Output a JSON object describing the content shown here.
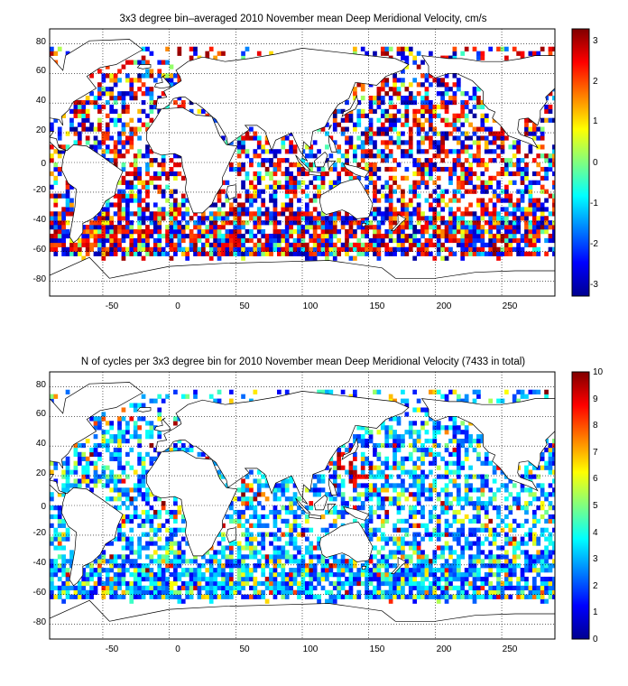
{
  "figure": {
    "panels": [
      {
        "title": "3x3 degree bin–averaged 2010 November mean Deep Meridional Velocity, cm/s",
        "x_ticks": [
          "-50",
          "0",
          "50",
          "100",
          "150",
          "200",
          "250"
        ],
        "y_ticks": [
          "80",
          "60",
          "40",
          "20",
          "0",
          "-20",
          "-40",
          "-60",
          "-80"
        ],
        "colorbar_ticks": [
          "3",
          "2",
          "1",
          "0",
          "-1",
          "-2",
          "-3"
        ]
      },
      {
        "title": "N of cycles per 3x3 degree bin for 2010 November mean Deep Meridional Velocity (7433 in total)",
        "x_ticks": [
          "-50",
          "0",
          "50",
          "100",
          "150",
          "200",
          "250"
        ],
        "y_ticks": [
          "80",
          "60",
          "40",
          "20",
          "0",
          "-20",
          "-40",
          "-60",
          "-80"
        ],
        "colorbar_ticks": [
          "10",
          "9",
          "8",
          "7",
          "6",
          "5",
          "4",
          "3",
          "2",
          "1",
          "0"
        ]
      }
    ]
  },
  "chart_data": [
    {
      "type": "heatmap",
      "title": "3x3 degree bin–averaged 2010 November mean Deep Meridional Velocity, cm/s",
      "xlim": [
        -90,
        290
      ],
      "ylim": [
        -90,
        90
      ],
      "x_ticks": [
        -50,
        0,
        50,
        100,
        150,
        200,
        250
      ],
      "y_ticks": [
        80,
        60,
        40,
        20,
        0,
        -20,
        -40,
        -60,
        -80
      ],
      "bin_size_deg": 3,
      "grid": "dotted",
      "colormap": "jet",
      "clim": [
        -3.3,
        3.3
      ],
      "colorbar_ticks": [
        3,
        2,
        1,
        0,
        -1,
        -2,
        -3
      ],
      "colors": {
        "ocean_bg": "#ffffff",
        "coast": "#000000"
      }
    },
    {
      "type": "heatmap",
      "title": "N of cycles per 3x3 degree bin for 2010 November mean Deep Meridional Velocity (7433 in total)",
      "total_cycles": 7433,
      "xlim": [
        -90,
        290
      ],
      "ylim": [
        -90,
        90
      ],
      "x_ticks": [
        -50,
        0,
        50,
        100,
        150,
        200,
        250
      ],
      "y_ticks": [
        80,
        60,
        40,
        20,
        0,
        -20,
        -40,
        -60,
        -80
      ],
      "bin_size_deg": 3,
      "grid": "dotted",
      "colormap": "jet",
      "clim": [
        0,
        10
      ],
      "colorbar_ticks": [
        10,
        9,
        8,
        7,
        6,
        5,
        4,
        3,
        2,
        1,
        0
      ],
      "colors": {
        "ocean_bg": "#ffffff",
        "coast": "#000000"
      }
    }
  ]
}
